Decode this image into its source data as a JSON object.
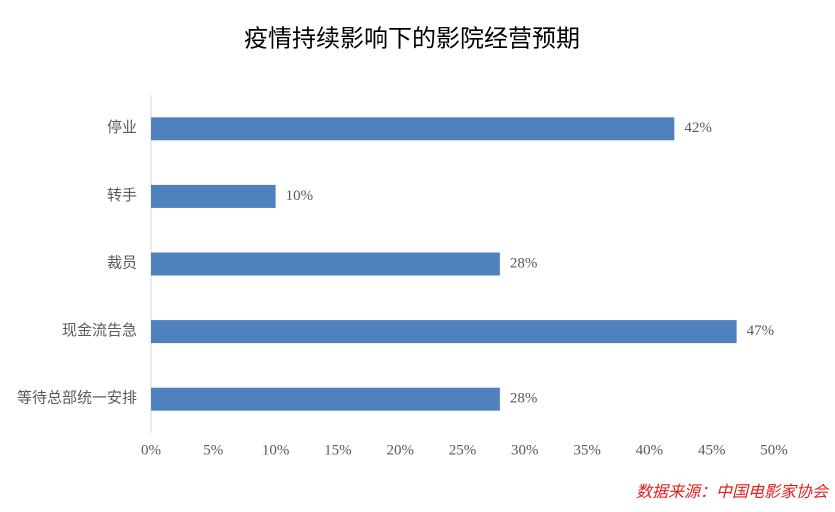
{
  "chart_data": {
    "type": "bar",
    "orientation": "horizontal",
    "title": "疫情持续影响下的影院经营预期",
    "categories": [
      "停业",
      "转手",
      "裁员",
      "现金流告急",
      "等待总部统一安排"
    ],
    "values": [
      42,
      10,
      28,
      47,
      28
    ],
    "value_labels": [
      "42%",
      "10%",
      "28%",
      "47%",
      "28%"
    ],
    "color": "#4f81bd",
    "xlim": [
      0,
      50
    ],
    "xticks": [
      {
        "value": 0,
        "label": "0%"
      },
      {
        "value": 5,
        "label": "5%"
      },
      {
        "value": 10,
        "label": "10%"
      },
      {
        "value": 15,
        "label": "15%"
      },
      {
        "value": 20,
        "label": "20%"
      },
      {
        "value": 25,
        "label": "25%"
      },
      {
        "value": 30,
        "label": "30%"
      },
      {
        "value": 35,
        "label": "35%"
      },
      {
        "value": 40,
        "label": "40%"
      },
      {
        "value": 45,
        "label": "45%"
      },
      {
        "value": 50,
        "label": "50%"
      }
    ],
    "grid": false,
    "source": "数据来源：中国电影家协会"
  }
}
